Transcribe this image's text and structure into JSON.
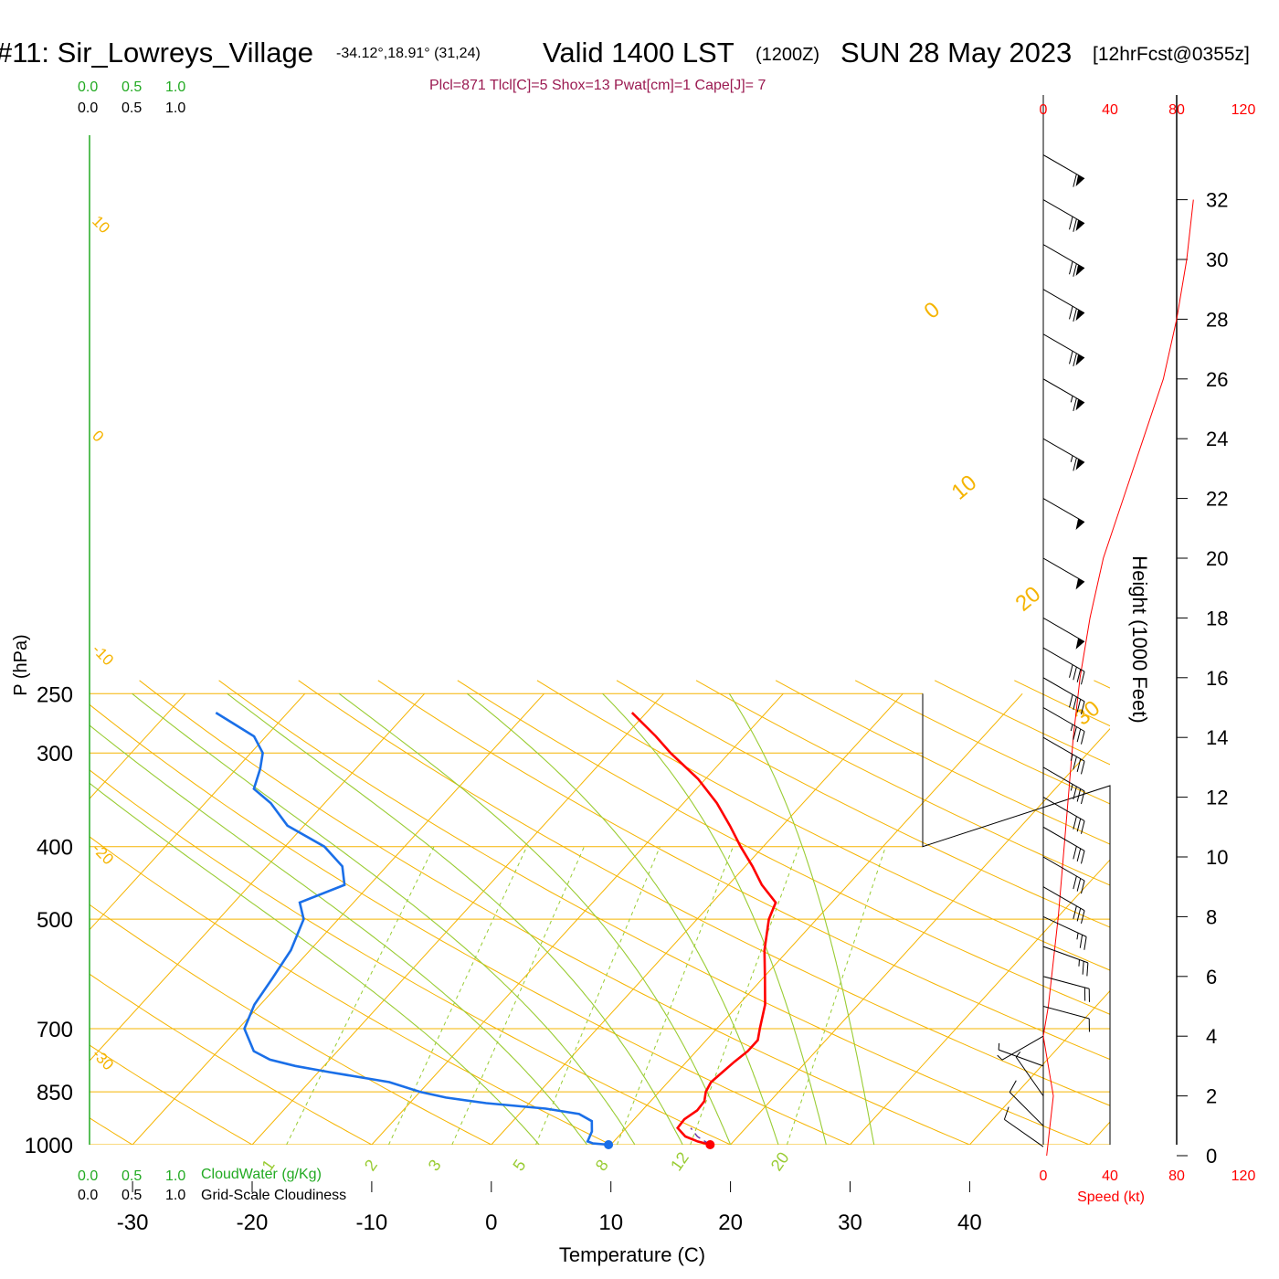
{
  "header": {
    "station": "#11: Sir_Lowreys_Village",
    "coords": "-34.12°,18.91° (31,24)",
    "valid": "Valid 1400 LST",
    "utc": "(1200Z)",
    "date": "SUN 28 May 2023",
    "forecast": "[12hrFcst@0355z]"
  },
  "indices": "Plcl=871 Tlcl[C]=5 Shox=13 Pwat[cm]=1 Cape[J]= 7",
  "colors": {
    "isotherm": "#f5b400",
    "adiabat": "#99cc33",
    "temperature": "#ff0000",
    "dewpoint": "#1a6fe8",
    "indices": "#9b1b52",
    "green_text": "#22aa22",
    "red_text": "#ff0000"
  },
  "cloud_scales": {
    "top_green": [
      "0.0",
      "0.5",
      "1.0"
    ],
    "top_black": [
      "0.0",
      "0.5",
      "1.0"
    ],
    "bottom_green": [
      "0.0",
      "0.5",
      "1.0"
    ],
    "bottom_green_label": "CloudWater (g/Kg)",
    "bottom_black": [
      "0.0",
      "0.5",
      "1.0"
    ],
    "bottom_black_label": "Grid-Scale Cloudiness"
  },
  "speed_axis": {
    "ticks_top": [
      "0",
      "40",
      "80",
      "120"
    ],
    "ticks_bottom": [
      "0",
      "40",
      "80",
      "120"
    ],
    "label": "Speed (kt)"
  },
  "chart_data": {
    "type": "line",
    "subtype": "skew-T log-P sounding",
    "xlabel": "Temperature (C)",
    "ylabel": "P (hPa)",
    "y2label": "Height (1000 Feet)",
    "x_ticks": [
      "-30",
      "-20",
      "-10",
      "0",
      "10",
      "20",
      "30",
      "40"
    ],
    "y_ticks": [
      "250",
      "300",
      "400",
      "500",
      "700",
      "850",
      "1000"
    ],
    "y2_ticks": [
      "0",
      "2",
      "4",
      "6",
      "8",
      "10",
      "12",
      "14",
      "16",
      "18",
      "20",
      "22",
      "24",
      "26",
      "28",
      "30",
      "32"
    ],
    "xlim": [
      -34,
      36
    ],
    "ylim": [
      1000,
      250
    ],
    "isotherm_labels": [
      {
        "t": 10,
        "text": "10"
      },
      {
        "t": 0,
        "text": "0"
      },
      {
        "t": -10,
        "text": "-10"
      },
      {
        "t": -20,
        "text": "-20"
      },
      {
        "t": -30,
        "text": "-30"
      }
    ],
    "isotherm_labels_right": [
      {
        "t": 0,
        "text": "0"
      },
      {
        "t": 10,
        "text": "10"
      },
      {
        "t": 20,
        "text": "20"
      },
      {
        "t": 30,
        "text": "30"
      }
    ],
    "mixing_ratio_labels": [
      "1",
      "2",
      "3",
      "5",
      "8",
      "12",
      "20"
    ],
    "series": [
      {
        "name": "Temperature",
        "points": [
          [
            1000,
            18.3
          ],
          [
            990,
            17.0
          ],
          [
            975,
            15.6
          ],
          [
            950,
            14.3
          ],
          [
            925,
            14.2
          ],
          [
            900,
            14.6
          ],
          [
            875,
            14.5
          ],
          [
            850,
            13.9
          ],
          [
            825,
            13.6
          ],
          [
            800,
            13.8
          ],
          [
            775,
            14.0
          ],
          [
            750,
            14.3
          ],
          [
            725,
            14.3
          ],
          [
            700,
            13.6
          ],
          [
            650,
            12.2
          ],
          [
            600,
            10.2
          ],
          [
            550,
            8.0
          ],
          [
            500,
            6.0
          ],
          [
            475,
            5.3
          ],
          [
            450,
            2.8
          ],
          [
            425,
            0.6
          ],
          [
            400,
            -1.9
          ],
          [
            375,
            -4.4
          ],
          [
            350,
            -7.2
          ],
          [
            325,
            -10.6
          ],
          [
            300,
            -14.9
          ],
          [
            285,
            -17.4
          ],
          [
            265,
            -21.2
          ]
        ]
      },
      {
        "name": "Dewpoint",
        "points": [
          [
            1000,
            9.8
          ],
          [
            996,
            8.4
          ],
          [
            990,
            7.8
          ],
          [
            960,
            7.4
          ],
          [
            930,
            6.6
          ],
          [
            910,
            5.0
          ],
          [
            895,
            1.8
          ],
          [
            880,
            -3.6
          ],
          [
            865,
            -7.4
          ],
          [
            850,
            -10.0
          ],
          [
            825,
            -13.3
          ],
          [
            800,
            -19.1
          ],
          [
            785,
            -22.4
          ],
          [
            770,
            -25.0
          ],
          [
            750,
            -27.0
          ],
          [
            700,
            -29.5
          ],
          [
            650,
            -30.5
          ],
          [
            600,
            -31.0
          ],
          [
            550,
            -31.6
          ],
          [
            500,
            -32.9
          ],
          [
            475,
            -34.5
          ],
          [
            450,
            -32.1
          ],
          [
            425,
            -33.7
          ],
          [
            400,
            -36.7
          ],
          [
            375,
            -41.4
          ],
          [
            350,
            -44.5
          ],
          [
            335,
            -47.0
          ],
          [
            315,
            -48.0
          ],
          [
            300,
            -49.0
          ],
          [
            285,
            -51.0
          ],
          [
            265,
            -56.0
          ]
        ]
      },
      {
        "name": "Parcel",
        "points": [
          [
            1000,
            18.3
          ],
          [
            975,
            16.6
          ],
          [
            950,
            15.4
          ]
        ]
      }
    ],
    "surface_markers": [
      {
        "name": "Temperature",
        "p": 1000,
        "t": 18.3
      },
      {
        "name": "Dewpoint",
        "p": 1000,
        "t": 9.8
      }
    ],
    "wind_speed_profile": [
      [
        0.0,
        2
      ],
      [
        0.5,
        3
      ],
      [
        1.0,
        4
      ],
      [
        2.0,
        6
      ],
      [
        3.0,
        3
      ],
      [
        4.0,
        0
      ],
      [
        5.0,
        3
      ],
      [
        8.0,
        9
      ],
      [
        10.0,
        12
      ],
      [
        12.0,
        15
      ],
      [
        14.0,
        18
      ],
      [
        16.0,
        22
      ],
      [
        18.0,
        28
      ],
      [
        20.0,
        36
      ],
      [
        22.0,
        48
      ],
      [
        24.0,
        60
      ],
      [
        26.0,
        72
      ],
      [
        28.0,
        80
      ],
      [
        30.0,
        86
      ],
      [
        32.0,
        90
      ]
    ],
    "wind_barbs": [
      {
        "h": 0.3,
        "dir": 125,
        "spd": 10
      },
      {
        "h": 1.0,
        "dir": 135,
        "spd": 10
      },
      {
        "h": 2.0,
        "dir": 145,
        "spd": 5
      },
      {
        "h": 3.0,
        "dir": 110,
        "spd": 5
      },
      {
        "h": 4.0,
        "dir": 60,
        "spd": 5
      },
      {
        "h": 5.0,
        "dir": 285,
        "spd": 10
      },
      {
        "h": 6.0,
        "dir": 285,
        "spd": 20
      },
      {
        "h": 7.0,
        "dir": 290,
        "spd": 25
      },
      {
        "h": 8.0,
        "dir": 295,
        "spd": 25
      },
      {
        "h": 9.0,
        "dir": 300,
        "spd": 30
      },
      {
        "h": 10.0,
        "dir": 300,
        "spd": 30
      },
      {
        "h": 11.0,
        "dir": 300,
        "spd": 30
      },
      {
        "h": 12.0,
        "dir": 300,
        "spd": 30
      },
      {
        "h": 13.0,
        "dir": 300,
        "spd": 35
      },
      {
        "h": 14.0,
        "dir": 300,
        "spd": 35
      },
      {
        "h": 15.0,
        "dir": 300,
        "spd": 35
      },
      {
        "h": 16.0,
        "dir": 300,
        "spd": 40
      },
      {
        "h": 17.0,
        "dir": 300,
        "spd": 40
      },
      {
        "h": 18.0,
        "dir": 300,
        "spd": 50
      },
      {
        "h": 20.0,
        "dir": 300,
        "spd": 50
      },
      {
        "h": 22.0,
        "dir": 300,
        "spd": 50
      },
      {
        "h": 24.0,
        "dir": 300,
        "spd": 65
      },
      {
        "h": 26.0,
        "dir": 300,
        "spd": 65
      },
      {
        "h": 27.5,
        "dir": 300,
        "spd": 70
      },
      {
        "h": 29.0,
        "dir": 300,
        "spd": 70
      },
      {
        "h": 30.5,
        "dir": 300,
        "spd": 70
      },
      {
        "h": 32.0,
        "dir": 300,
        "spd": 70
      },
      {
        "h": 33.5,
        "dir": 300,
        "spd": 60
      }
    ],
    "grid": true
  }
}
